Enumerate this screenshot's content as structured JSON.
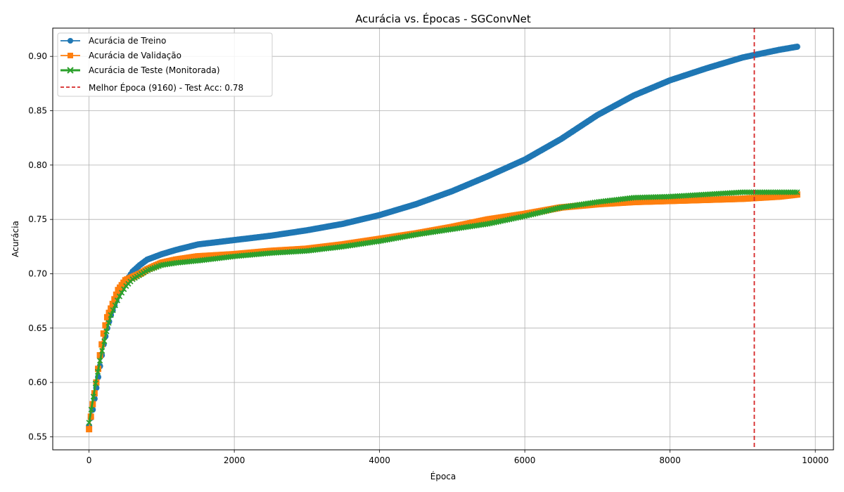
{
  "chart_data": {
    "type": "line",
    "title": "Acurácia vs. Épocas - SGConvNet",
    "xlabel": "Época",
    "ylabel": "Acurácia",
    "xlim": [
      -500,
      10250
    ],
    "ylim": [
      0.538,
      0.926
    ],
    "xticks": [
      0,
      2000,
      4000,
      6000,
      8000,
      10000
    ],
    "yticks": [
      0.55,
      0.6,
      0.65,
      0.7,
      0.75,
      0.8,
      0.85,
      0.9
    ],
    "xtick_labels": [
      "0",
      "2000",
      "4000",
      "6000",
      "8000",
      "10000"
    ],
    "ytick_labels": [
      "0.55",
      "0.60",
      "0.65",
      "0.70",
      "0.75",
      "0.80",
      "0.85",
      "0.90"
    ],
    "grid": true,
    "legend_position": "top-left",
    "series": [
      {
        "name": "Acurácia de Treino",
        "color": "#1f77b4",
        "marker": "circle",
        "x": [
          0,
          50,
          100,
          150,
          200,
          250,
          300,
          400,
          500,
          600,
          700,
          800,
          1000,
          1200,
          1500,
          2000,
          2500,
          3000,
          3500,
          4000,
          4500,
          5000,
          5500,
          6000,
          6500,
          7000,
          7500,
          8000,
          8500,
          9000,
          9500,
          9760
        ],
        "y": [
          0.56,
          0.575,
          0.595,
          0.615,
          0.635,
          0.65,
          0.662,
          0.68,
          0.692,
          0.702,
          0.708,
          0.713,
          0.718,
          0.722,
          0.727,
          0.731,
          0.735,
          0.74,
          0.746,
          0.754,
          0.764,
          0.776,
          0.79,
          0.805,
          0.824,
          0.846,
          0.864,
          0.878,
          0.889,
          0.899,
          0.906,
          0.909
        ]
      },
      {
        "name": "Acurácia de Validação",
        "color": "#ff7f0e",
        "marker": "square",
        "x": [
          0,
          50,
          100,
          150,
          200,
          250,
          300,
          400,
          500,
          600,
          700,
          800,
          1000,
          1200,
          1500,
          2000,
          2500,
          3000,
          3500,
          4000,
          4500,
          5000,
          5500,
          6000,
          6500,
          7000,
          7500,
          8000,
          8500,
          9000,
          9500,
          9760
        ],
        "y": [
          0.557,
          0.58,
          0.6,
          0.625,
          0.645,
          0.66,
          0.668,
          0.685,
          0.694,
          0.697,
          0.7,
          0.704,
          0.71,
          0.713,
          0.716,
          0.718,
          0.721,
          0.723,
          0.727,
          0.732,
          0.737,
          0.743,
          0.75,
          0.755,
          0.761,
          0.764,
          0.766,
          0.767,
          0.768,
          0.769,
          0.771,
          0.773
        ]
      },
      {
        "name": "Acurácia de Teste (Monitorada)",
        "color": "#2ca02c",
        "marker": "x",
        "x": [
          0,
          50,
          100,
          150,
          200,
          250,
          300,
          400,
          500,
          600,
          700,
          800,
          1000,
          1200,
          1500,
          2000,
          2500,
          3000,
          3500,
          4000,
          4500,
          5000,
          5500,
          6000,
          6500,
          7000,
          7500,
          8000,
          8500,
          9000,
          9500,
          9760
        ],
        "y": [
          0.563,
          0.583,
          0.603,
          0.62,
          0.635,
          0.65,
          0.662,
          0.677,
          0.688,
          0.695,
          0.699,
          0.703,
          0.708,
          0.71,
          0.712,
          0.716,
          0.719,
          0.721,
          0.725,
          0.73,
          0.736,
          0.741,
          0.746,
          0.753,
          0.761,
          0.766,
          0.77,
          0.771,
          0.773,
          0.775,
          0.775,
          0.775
        ]
      }
    ],
    "annotations": [
      {
        "type": "vline",
        "x": 9160,
        "color": "#d62728",
        "style": "dashed",
        "label": "Melhor Época (9160) - Test Acc: 0.78"
      }
    ]
  }
}
